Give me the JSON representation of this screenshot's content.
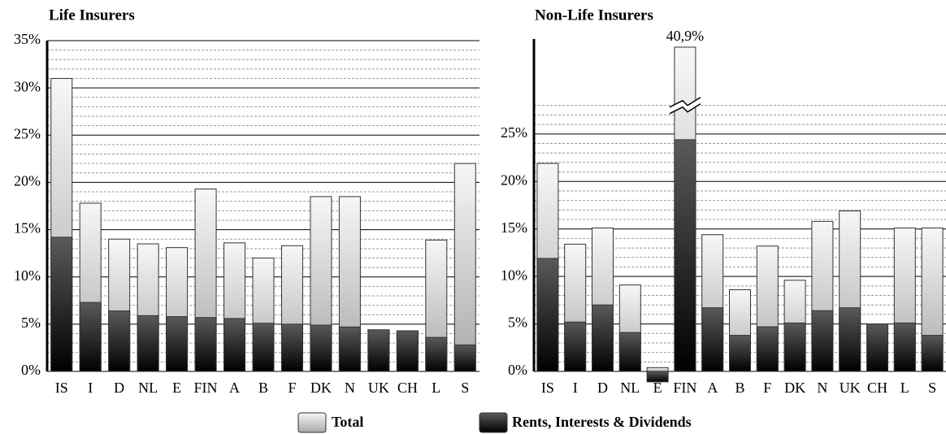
{
  "chart_data": [
    {
      "type": "bar",
      "title": "Life Insurers",
      "categories": [
        "IS",
        "I",
        "D",
        "NL",
        "E",
        "FIN",
        "A",
        "B",
        "F",
        "DK",
        "N",
        "UK",
        "CH",
        "L",
        "S"
      ],
      "series": [
        {
          "name": "Total",
          "color": "#a8a8a8",
          "values": [
            31,
            17.8,
            14.0,
            13.5,
            13.1,
            19.3,
            13.6,
            12.0,
            13.3,
            18.5,
            18.5,
            4.4,
            4.3,
            13.9,
            22.0
          ]
        },
        {
          "name": "Rents, Interests & Dividends",
          "color": "#000000",
          "values": [
            14.2,
            7.3,
            6.4,
            5.9,
            5.8,
            5.7,
            5.6,
            5.1,
            5.0,
            4.9,
            4.7,
            4.4,
            4.3,
            3.6,
            2.8
          ]
        }
      ],
      "ylim": [
        0,
        35
      ],
      "yticks": [
        {
          "value": 0,
          "label": "0%"
        },
        {
          "value": 5,
          "label": "5%"
        },
        {
          "value": 10,
          "label": "10%"
        },
        {
          "value": 15,
          "label": "15%"
        },
        {
          "value": 20,
          "label": "20%"
        },
        {
          "value": 25,
          "label": "25%"
        },
        {
          "value": 30,
          "label": "30%"
        },
        {
          "value": 35,
          "label": "35%"
        }
      ],
      "grid": true,
      "minor_ytick_step": 1
    },
    {
      "type": "bar",
      "title": "Non-Life Insurers",
      "categories": [
        "IS",
        "I",
        "D",
        "NL",
        "E",
        "FIN",
        "A",
        "B",
        "F",
        "DK",
        "N",
        "UK",
        "CH",
        "L",
        "S"
      ],
      "series": [
        {
          "name": "Total",
          "color": "#a8a8a8",
          "values": [
            21.9,
            13.4,
            15.1,
            9.1,
            0.4,
            40.9,
            14.4,
            8.6,
            13.2,
            9.6,
            15.8,
            16.9,
            5.0,
            15.1,
            15.1
          ],
          "value_labels": [
            null,
            null,
            null,
            null,
            null,
            "40,9%",
            null,
            null,
            null,
            null,
            null,
            null,
            null,
            null,
            null
          ]
        },
        {
          "name": "Rents, Interests & Dividends",
          "color": "#000000",
          "values": [
            11.9,
            5.2,
            7.0,
            4.1,
            -1.1,
            24.4,
            6.7,
            3.8,
            4.7,
            5.1,
            6.4,
            6.7,
            5.0,
            5.1,
            3.8
          ]
        }
      ],
      "ylim": [
        0,
        35
      ],
      "yticks": [
        {
          "value": 0,
          "label": "0%"
        },
        {
          "value": 5,
          "label": "5%"
        },
        {
          "value": 10,
          "label": "10%"
        },
        {
          "value": 15,
          "label": "15%"
        },
        {
          "value": 20,
          "label": "20%"
        },
        {
          "value": 25,
          "label": "25%"
        }
      ],
      "grid": true,
      "minor_ytick_step": 1,
      "axis_break": 28
    }
  ]
}
